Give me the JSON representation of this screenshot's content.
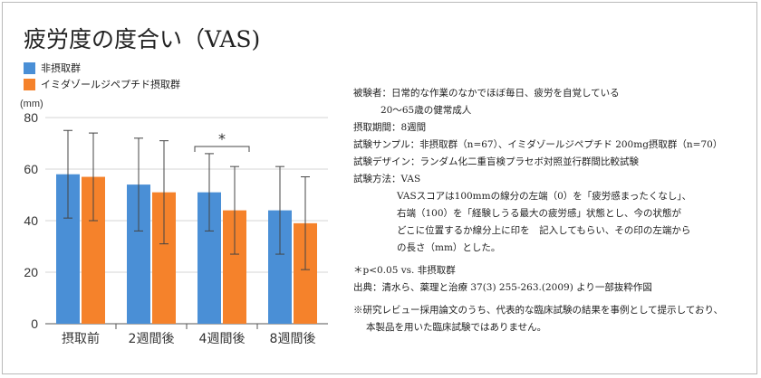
{
  "chart_data": {
    "type": "bar",
    "title": "疲労度の度合い（VAS)",
    "ylabel": "(mm)",
    "xlabel": "",
    "ylim": [
      0,
      80
    ],
    "yticks": [
      0,
      20,
      40,
      60,
      80
    ],
    "grid": true,
    "legend_position": "top-left",
    "categories": [
      "摂取前",
      "2週間後",
      "4週間後",
      "8週間後"
    ],
    "series": [
      {
        "name": "非摂取群",
        "color": "#4a8fd6",
        "values": [
          58,
          54,
          51,
          44
        ],
        "error": [
          17,
          18,
          15,
          17
        ]
      },
      {
        "name": "イミダゾールジペプチド摂取群",
        "color": "#f5822b",
        "values": [
          57,
          51,
          44,
          39
        ],
        "error": [
          17,
          20,
          17,
          18
        ]
      }
    ],
    "annotations": [
      {
        "text": "*",
        "category": "4週間後"
      }
    ]
  },
  "notes": {
    "subjects": "被験者：日常的な作業のなかでほぼ毎日、疲労を自覚している",
    "subjects_cont": "20～65歳の健常成人",
    "period": "摂取期間：8週間",
    "sample": "試験サンプル：非摂取群（n=67）、イミダゾールジペプチド 200mg摂取群（n=70）",
    "design": "試験デザイン：ランダム化二重盲検プラセボ対照並行群間比較試験",
    "method": "試験方法：VAS",
    "method_desc": [
      "VASスコアは100mmの線分の左端（0）を「疲労感まったくなし」、",
      "右端（100）を「経験しうる最大の疲労感」状態とし、今の状態が",
      "どこに位置するか線分上に印を　記入してもらい、その印の左端から",
      "の長さ（mm）とした。"
    ],
    "significance": "＊p<0.05 vs. 非摂取群",
    "source": "出典：清水ら、薬理と治療 37(3) 255-263.(2009) より一部抜粋作図",
    "disclaimer": [
      "※研究レビュー採用論文のうち、代表的な臨床試験の結果を事例として提示しており、",
      "本製品を用いた臨床試験ではありません。"
    ]
  }
}
